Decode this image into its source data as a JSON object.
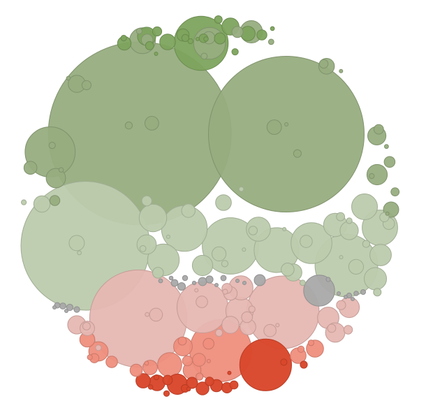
{
  "chart_data": {
    "type": "packed-bubble",
    "title": "",
    "legend": "none",
    "grid": false,
    "colors": {
      "green_medium": "#97ad80",
      "green_dark": "#7da35d",
      "green_light": "#bccbad",
      "pink_light": "#e6b7b2",
      "salmon": "#ef8e7d",
      "red_orange": "#d9472b",
      "gray": "#a9a9a9"
    },
    "series": [
      {
        "group": "green_medium",
        "values": [
          29000,
          40000,
          3000,
          1200,
          800,
          600,
          500,
          450,
          400,
          350,
          300,
          280,
          250,
          230,
          200,
          180,
          160,
          150,
          140,
          120,
          110,
          100,
          90,
          80,
          70,
          60,
          50,
          45,
          40,
          35,
          30,
          25,
          20,
          18,
          15,
          12,
          10
        ]
      },
      {
        "group": "green_dark",
        "values": [
          3500,
          400,
          350,
          300,
          250,
          220,
          180,
          150,
          120,
          100,
          90,
          80,
          70,
          60,
          50,
          40,
          30,
          25,
          20,
          15,
          10
        ]
      },
      {
        "group": "green_light",
        "values": [
          19800,
          4700,
          3800,
          2500,
          2400,
          2000,
          1500,
          1200,
          900,
          800,
          700,
          650,
          600,
          550,
          500,
          450,
          400,
          350,
          320,
          300,
          280,
          260,
          240,
          220,
          200,
          180,
          160,
          140,
          120,
          100,
          90,
          80,
          70,
          60,
          50,
          45,
          40,
          35,
          30,
          25,
          20,
          15,
          12,
          10,
          8
        ]
      },
      {
        "group": "pink_light",
        "values": [
          11300,
          6300,
          3100,
          900,
          700,
          550,
          500,
          450,
          400,
          350,
          300,
          250,
          220,
          200,
          180,
          160,
          140,
          120,
          100,
          90,
          80,
          70,
          60,
          50,
          40,
          30,
          20,
          15,
          10
        ]
      },
      {
        "group": "salmon",
        "values": [
          4600,
          700,
          450,
          420,
          380,
          350,
          300,
          270,
          250,
          200,
          180,
          160,
          140,
          120,
          100,
          80,
          60,
          50,
          40,
          30,
          20,
          15
        ]
      },
      {
        "group": "red_orange",
        "values": [
          3200,
          500,
          300,
          250,
          200,
          180,
          150,
          130,
          110,
          90,
          80,
          70,
          60,
          50,
          40,
          30,
          25,
          20,
          15
        ]
      },
      {
        "group": "gray",
        "values": [
          1150,
          150,
          80,
          70,
          60,
          55,
          50,
          45,
          40,
          38,
          35,
          32,
          30,
          28,
          25,
          22,
          20,
          18,
          16,
          15,
          14,
          13,
          12,
          11,
          10,
          9,
          8
        ]
      }
    ]
  }
}
